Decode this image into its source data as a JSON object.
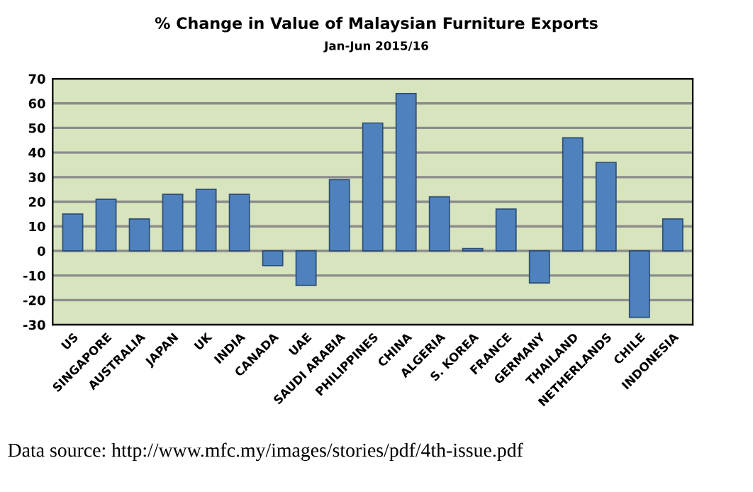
{
  "chart_data": {
    "type": "bar",
    "title": "% Change in Value of Malaysian Furniture Exports",
    "subtitle": "Jan-Jun 2015/16",
    "categories": [
      "US",
      "SINGAPORE",
      "AUSTRALIA",
      "JAPAN",
      "UK",
      "INDIA",
      "CANADA",
      "UAE",
      "SAUDI ARABIA",
      "PHILIPPINES",
      "CHINA",
      "ALGERIA",
      "S. KOREA",
      "FRANCE",
      "GERMANY",
      "THAILAND",
      "NETHERLANDS",
      "CHILE",
      "INDONESIA"
    ],
    "values": [
      15,
      21,
      13,
      23,
      25,
      23,
      -6,
      -14,
      29,
      52,
      64,
      22,
      1,
      17,
      -13,
      46,
      36,
      -27,
      13
    ],
    "color": "#4f81bd",
    "ylim": [
      -30,
      70
    ],
    "yticks": [
      -30,
      -20,
      -10,
      0,
      10,
      20,
      30,
      40,
      50,
      60,
      70
    ],
    "grid": "y",
    "annotations": [
      "Data source: http://www.mfc.my/images/stories/pdf/4th-issue.pdf"
    ]
  }
}
